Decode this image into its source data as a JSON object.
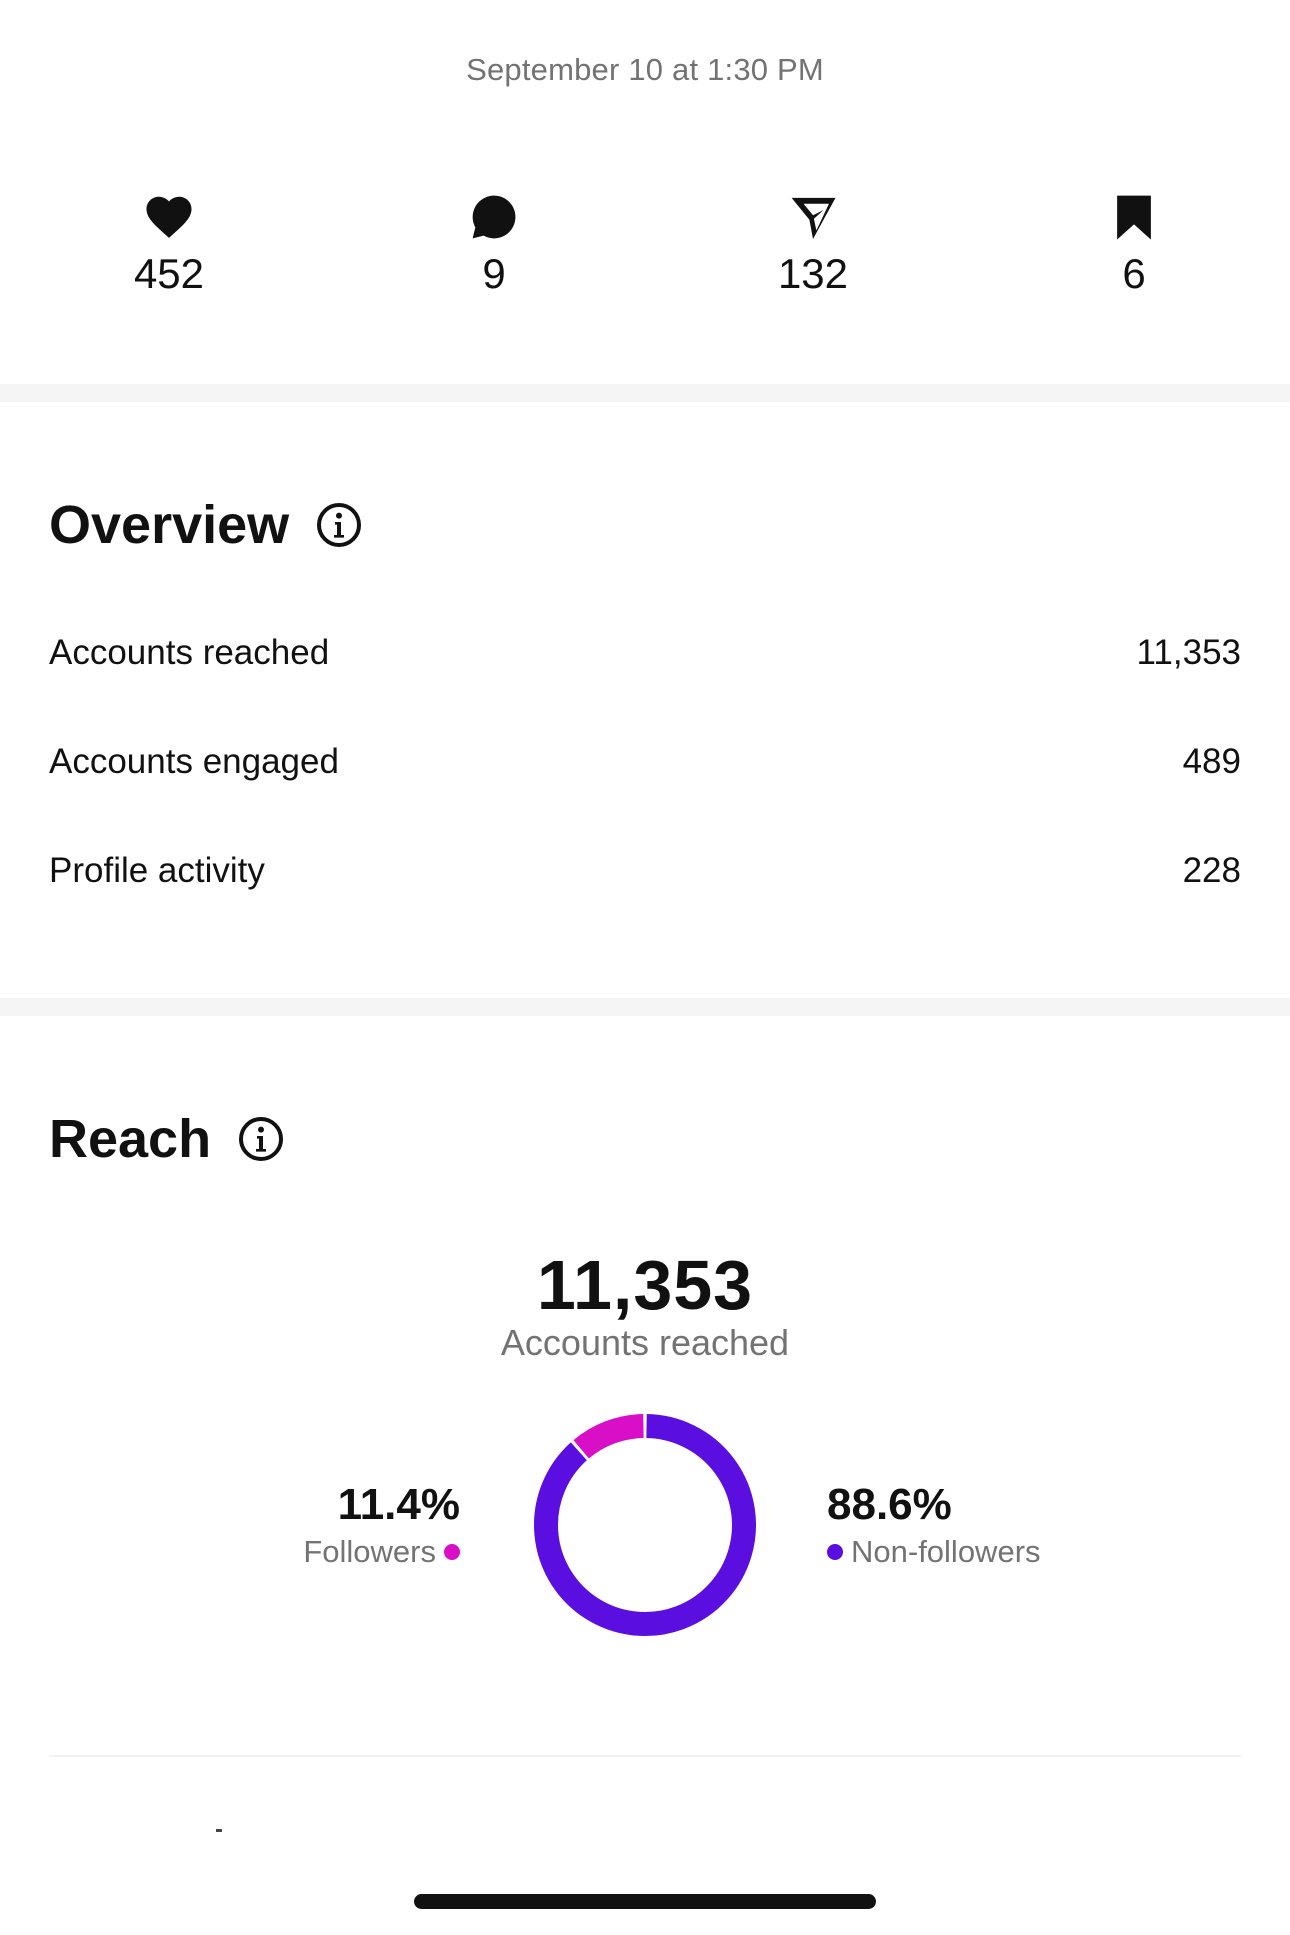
{
  "header": {
    "timestamp": "September 10 at 1:30 PM"
  },
  "stats": [
    {
      "icon": "heart-icon",
      "value": "452"
    },
    {
      "icon": "comment-icon",
      "value": "9"
    },
    {
      "icon": "share-icon",
      "value": "132"
    },
    {
      "icon": "bookmark-icon",
      "value": "6"
    }
  ],
  "overview": {
    "title": "Overview",
    "rows": [
      {
        "label": "Accounts reached",
        "value": "11,353"
      },
      {
        "label": "Accounts engaged",
        "value": "489"
      },
      {
        "label": "Profile activity",
        "value": "228"
      }
    ]
  },
  "reach": {
    "title": "Reach",
    "total": "11,353",
    "total_label": "Accounts reached",
    "followers": {
      "percent": "11.4%",
      "label": "Followers",
      "color": "#d90fc8"
    },
    "non_followers": {
      "percent": "88.6%",
      "label": "Non-followers",
      "color": "#5b0ee0"
    }
  },
  "chart_data": {
    "type": "pie",
    "categories": [
      "Followers",
      "Non-followers"
    ],
    "values": [
      11.4,
      88.6
    ],
    "colors": [
      "#d90fc8",
      "#5b0ee0"
    ]
  }
}
